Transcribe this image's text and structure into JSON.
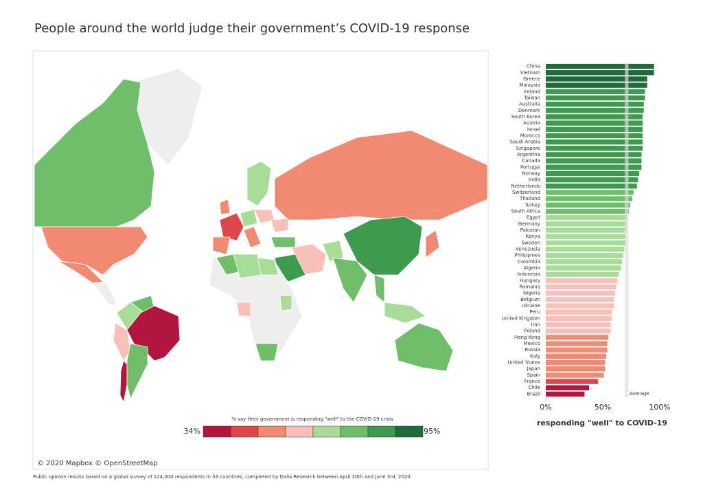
{
  "page_title": "People around the world judge their government’s COVID-19 response",
  "map": {
    "attribution": "© 2020 Mapbox © OpenStreetMap",
    "legend_title": "% say their government is responding \"well\" to the COVID-19 crisis",
    "legend_min": "34%",
    "legend_max": "95%",
    "legend_colors": [
      "#b2163f",
      "#e0454a",
      "#f08a70",
      "#f8c0b8",
      "#a8dd98",
      "#6fbf6a",
      "#3e9a4f",
      "#1f6b3b"
    ]
  },
  "footnote": "Public opinion results based on a global survey of 124,000 respondents in 53 countries, completed by Dalia Research between April 20th and June 3rd, 2020.",
  "chart_data": {
    "type": "bar",
    "orientation": "horizontal",
    "x_label": "responding \"well\" to COVID-19",
    "categories": [
      "China",
      "Vietnam",
      "Greece",
      "Malaysia",
      "Ireland",
      "Taiwan",
      "Australia",
      "Denmark",
      "South Korea",
      "Austria",
      "Israel",
      "Morocco",
      "Saudi Arabia",
      "Singapore",
      "Argentina",
      "Canada",
      "Portugal",
      "Norway",
      "India",
      "Netherlands",
      "Switzerland",
      "Thailand",
      "Turkey",
      "South Africa",
      "Egypt",
      "Germany",
      "Pakistan",
      "Kenya",
      "Sweden",
      "Venezuela",
      "Philippines",
      "Colombia",
      "Algeria",
      "Indonesia",
      "Hungary",
      "Romania",
      "Nigeria",
      "Belgium",
      "Ukraine",
      "Peru",
      "United Kingdom",
      "Iran",
      "Poland",
      "Hong Kong",
      "Mexico",
      "Russia",
      "Italy",
      "United States",
      "Japan",
      "Spain",
      "France",
      "Chile",
      "Brazil"
    ],
    "values": [
      95,
      95,
      89,
      89,
      87,
      87,
      86,
      86,
      85,
      85,
      85,
      85,
      85,
      85,
      84,
      84,
      84,
      82,
      81,
      80,
      77,
      76,
      74,
      73,
      72,
      71,
      71,
      70,
      70,
      69,
      68,
      67,
      66,
      64,
      63,
      62,
      61,
      60,
      60,
      58,
      58,
      57,
      57,
      55,
      54,
      54,
      53,
      52,
      52,
      51,
      46,
      38,
      34
    ],
    "colors": [
      "#1f6b3b",
      "#1f6b3b",
      "#1f6b3b",
      "#1f6b3b",
      "#3e9a4f",
      "#3e9a4f",
      "#3e9a4f",
      "#3e9a4f",
      "#3e9a4f",
      "#3e9a4f",
      "#3e9a4f",
      "#3e9a4f",
      "#3e9a4f",
      "#3e9a4f",
      "#3e9a4f",
      "#3e9a4f",
      "#3e9a4f",
      "#3e9a4f",
      "#3e9a4f",
      "#3e9a4f",
      "#6fbf6a",
      "#6fbf6a",
      "#6fbf6a",
      "#6fbf6a",
      "#a8dd98",
      "#a8dd98",
      "#a8dd98",
      "#a8dd98",
      "#a8dd98",
      "#a8dd98",
      "#a8dd98",
      "#a8dd98",
      "#a8dd98",
      "#a8dd98",
      "#f8c0b8",
      "#f8c0b8",
      "#f8c0b8",
      "#f8c0b8",
      "#f8c0b8",
      "#f8c0b8",
      "#f8c0b8",
      "#f8c0b8",
      "#f8c0b8",
      "#f08a70",
      "#f08a70",
      "#f08a70",
      "#f08a70",
      "#f08a70",
      "#f08a70",
      "#f08a70",
      "#e0454a",
      "#b2163f",
      "#b2163f"
    ],
    "xlim": [
      0,
      100
    ],
    "xticks": [
      {
        "value": 0,
        "label": "0%"
      },
      {
        "value": 50,
        "label": "50%"
      },
      {
        "value": 100,
        "label": "100%"
      }
    ],
    "reference_line": {
      "label": "Average",
      "value": 71
    }
  }
}
